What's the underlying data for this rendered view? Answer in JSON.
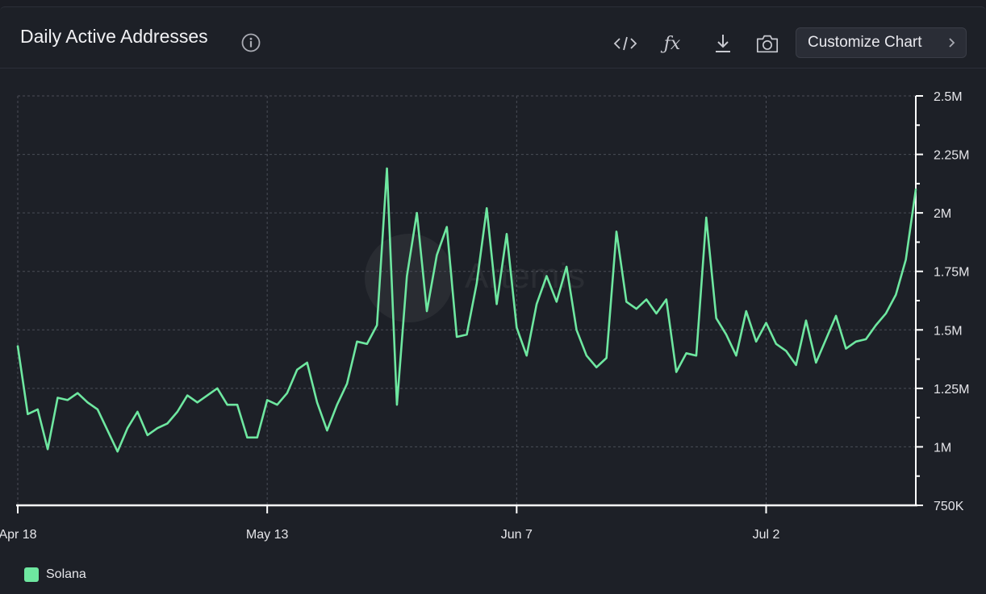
{
  "header": {
    "title": "Daily Active Addresses",
    "customize_label": "Customize Chart",
    "icons": [
      "info-icon",
      "embed-code-icon",
      "formula-icon",
      "download-icon",
      "camera-icon",
      "chevron-right-icon"
    ]
  },
  "legend": {
    "label": "Solana",
    "color": "#6ee7a0"
  },
  "chart_data": {
    "type": "line",
    "title": "Daily Active Addresses",
    "xlabel": "",
    "ylabel": "",
    "x_ticks": [
      "Apr 18",
      "May 13",
      "Jun 7",
      "Jul 2"
    ],
    "x_range_days": [
      0,
      90
    ],
    "y_ticks": [
      "750K",
      "1M",
      "1.25M",
      "1.5M",
      "1.75M",
      "2M",
      "2.25M",
      "2.5M"
    ],
    "y_tick_values": [
      750000,
      1000000,
      1250000,
      1500000,
      1750000,
      2000000,
      2250000,
      2500000
    ],
    "ylim": [
      750000,
      2500000
    ],
    "grid": true,
    "legend_position": "bottom-left",
    "watermark": "Artemis",
    "series": [
      {
        "name": "Solana",
        "color": "#6ee7a0",
        "start_date": "Apr 18",
        "values": [
          1430000,
          1140000,
          1160000,
          990000,
          1210000,
          1200000,
          1230000,
          1190000,
          1160000,
          1070000,
          980000,
          1080000,
          1150000,
          1050000,
          1080000,
          1100000,
          1150000,
          1220000,
          1190000,
          1220000,
          1250000,
          1180000,
          1180000,
          1040000,
          1040000,
          1200000,
          1180000,
          1230000,
          1330000,
          1360000,
          1190000,
          1070000,
          1180000,
          1270000,
          1450000,
          1440000,
          1520000,
          2190000,
          1180000,
          1730000,
          2000000,
          1580000,
          1820000,
          1940000,
          1470000,
          1480000,
          1700000,
          2020000,
          1610000,
          1910000,
          1510000,
          1390000,
          1610000,
          1730000,
          1620000,
          1770000,
          1500000,
          1390000,
          1340000,
          1380000,
          1920000,
          1620000,
          1590000,
          1630000,
          1570000,
          1630000,
          1320000,
          1400000,
          1390000,
          1980000,
          1550000,
          1480000,
          1390000,
          1580000,
          1450000,
          1530000,
          1440000,
          1410000,
          1350000,
          1540000,
          1360000,
          1460000,
          1560000,
          1420000,
          1450000,
          1460000,
          1520000,
          1570000,
          1650000,
          1800000,
          2100000
        ]
      }
    ]
  }
}
